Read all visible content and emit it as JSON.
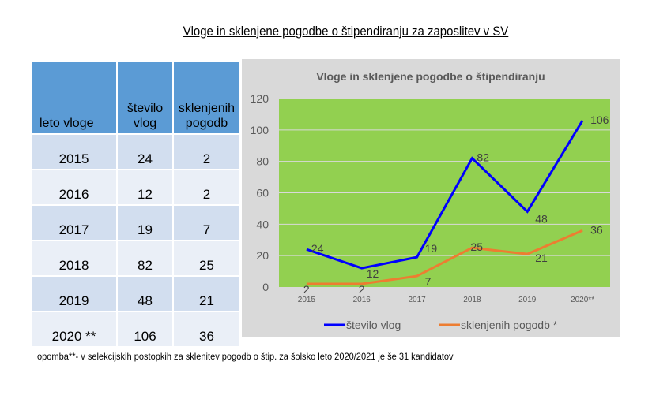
{
  "page_title": "Vloge in sklenjene pogodbe o štipendiranju za zaposlitev v SV",
  "table": {
    "headers": [
      "leto vloge",
      "število vlog",
      "sklenjenih pogodb"
    ],
    "rows": [
      [
        "2015",
        "24",
        "2"
      ],
      [
        "2016",
        "12",
        "2"
      ],
      [
        "2017",
        "19",
        "7"
      ],
      [
        "2018",
        "82",
        "25"
      ],
      [
        "2019",
        "48",
        "21"
      ],
      [
        "2020 **",
        "106",
        "36"
      ]
    ]
  },
  "chart_data": {
    "type": "line",
    "title": "Vloge in sklenjene pogodbe o štipendiranju",
    "categories": [
      "2015",
      "2016",
      "2017",
      "2018",
      "2019",
      "2020**"
    ],
    "series": [
      {
        "name": "število vlog",
        "values": [
          24,
          12,
          19,
          82,
          48,
          106
        ],
        "color": "#0000ff"
      },
      {
        "name": "sklenjenih pogodb *",
        "values": [
          2,
          2,
          7,
          25,
          21,
          36
        ],
        "color": "#ed7d31"
      }
    ],
    "ylim": [
      0,
      120
    ],
    "yticks": [
      0,
      20,
      40,
      60,
      80,
      100,
      120
    ],
    "grid": true,
    "legend": "bottom",
    "plot_background": "#92d050",
    "chart_background": "#d9d9d9"
  },
  "footnote": "opomba**- v selekcijskih postopkih za sklenitev pogodb o štip. za šolsko leto 2020/2021 je še 31 kandidatov"
}
